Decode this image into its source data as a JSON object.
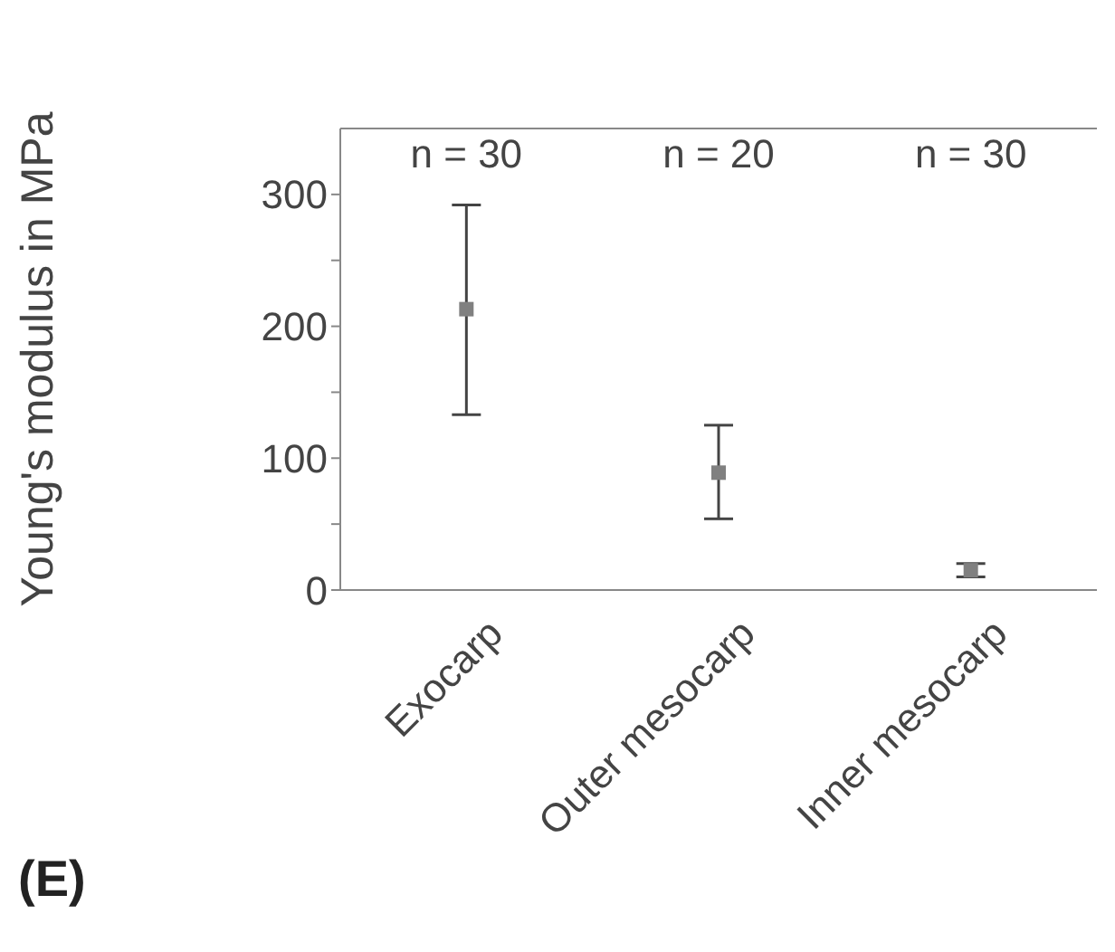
{
  "chart_data": {
    "type": "scatter",
    "ylabel": "Young's modulus in MPa",
    "categories": [
      "Exocarp",
      "Outer mesocarp",
      "Inner mesocarp"
    ],
    "series": [
      {
        "color": "#808080",
        "values": [
          213,
          89,
          15
        ],
        "errors": [
          [
            133,
            292
          ],
          [
            54,
            125
          ],
          [
            10,
            20
          ]
        ]
      }
    ],
    "ylim": [
      0,
      350
    ],
    "yticks": [
      0,
      {
        "value": 50,
        "label": null
      },
      100,
      {
        "value": 150,
        "label": null
      },
      200,
      {
        "value": 250,
        "label": null
      },
      300
    ],
    "marker": "square",
    "grid": false,
    "annotations": [
      "n = 30",
      "n = 20",
      "n = 30",
      "(E)"
    ]
  }
}
